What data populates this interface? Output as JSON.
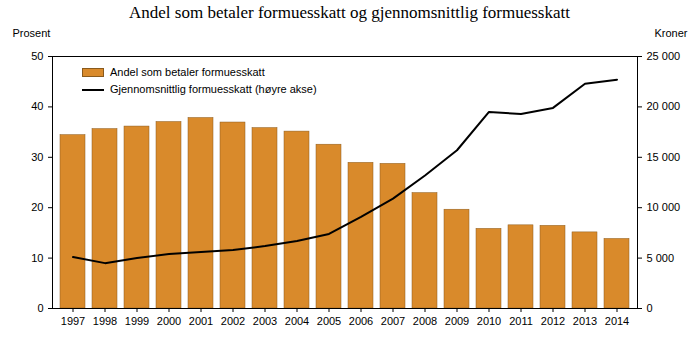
{
  "chart_data": {
    "type": "bar",
    "title": "Andel som betaler formuesskatt og gjennomsnittlig formuesskatt",
    "categories": [
      "1997",
      "1998",
      "1999",
      "2000",
      "2001",
      "2002",
      "2003",
      "2004",
      "2005",
      "2006",
      "2007",
      "2008",
      "2009",
      "2010",
      "2011",
      "2012",
      "2013",
      "2014"
    ],
    "series": [
      {
        "name": "Andel som betaler formuesskatt",
        "type": "bar",
        "color": "#d98a2b",
        "values": [
          34.4,
          35.6,
          36.1,
          37.0,
          37.8,
          36.9,
          35.8,
          35.1,
          32.5,
          28.9,
          28.7,
          22.9,
          19.6,
          15.8,
          16.5,
          16.4,
          15.1,
          13.8
        ]
      },
      {
        "name": "Gjennomsnittlig formuesskatt (høyre akse)",
        "type": "line",
        "axis": "y2",
        "color": "#000000",
        "line_style": "solid",
        "values": [
          5100,
          4500,
          5000,
          5400,
          5600,
          5800,
          6200,
          6700,
          7400,
          9100,
          10900,
          13200,
          15700,
          19500,
          19300,
          19900,
          22300,
          22700
        ]
      }
    ],
    "y_label": "Prosent",
    "y2_label": "Kroner",
    "ylim": [
      0,
      50
    ],
    "yticks": [
      0,
      10,
      20,
      30,
      40,
      50
    ],
    "y2lim": [
      0,
      25000
    ],
    "y2ticks": [
      0,
      {
        "value": 5000,
        "label": "5 000"
      },
      {
        "value": 10000,
        "label": "10 000"
      },
      {
        "value": 15000,
        "label": "15 000"
      },
      {
        "value": 20000,
        "label": "20 000"
      },
      {
        "value": 25000,
        "label": "25 000"
      }
    ],
    "grid": false,
    "legend": "upper left"
  }
}
